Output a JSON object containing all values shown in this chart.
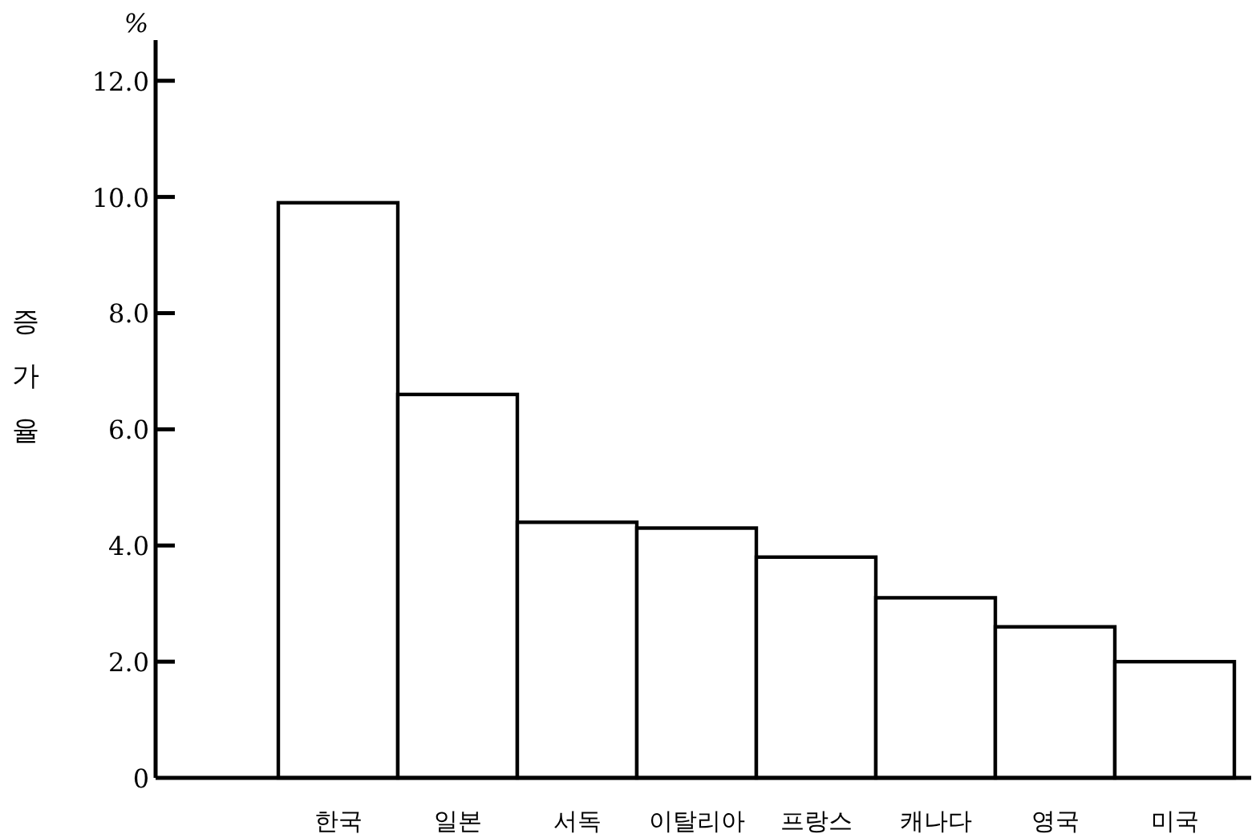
{
  "chart_data": {
    "type": "bar",
    "ylabel": "증가율",
    "annotations": [
      "%"
    ],
    "categories": [
      "한국",
      "일본",
      "서독",
      "이탈리아",
      "프랑스",
      "캐나다",
      "영국",
      "미국"
    ],
    "values": [
      9.9,
      6.6,
      4.4,
      4.3,
      3.8,
      3.1,
      2.6,
      2.0
    ],
    "color": "#ffffff",
    "ylim": [
      0,
      12.7
    ],
    "yticks": [
      0,
      {
        "value": 2,
        "label": "2.0"
      },
      {
        "value": 4,
        "label": "4.0"
      },
      {
        "value": 6,
        "label": "6.0"
      },
      {
        "value": 8,
        "label": "8.0"
      },
      {
        "value": 10,
        "label": "10.0"
      },
      {
        "value": 12,
        "label": "12.0"
      }
    ],
    "grid": false
  }
}
